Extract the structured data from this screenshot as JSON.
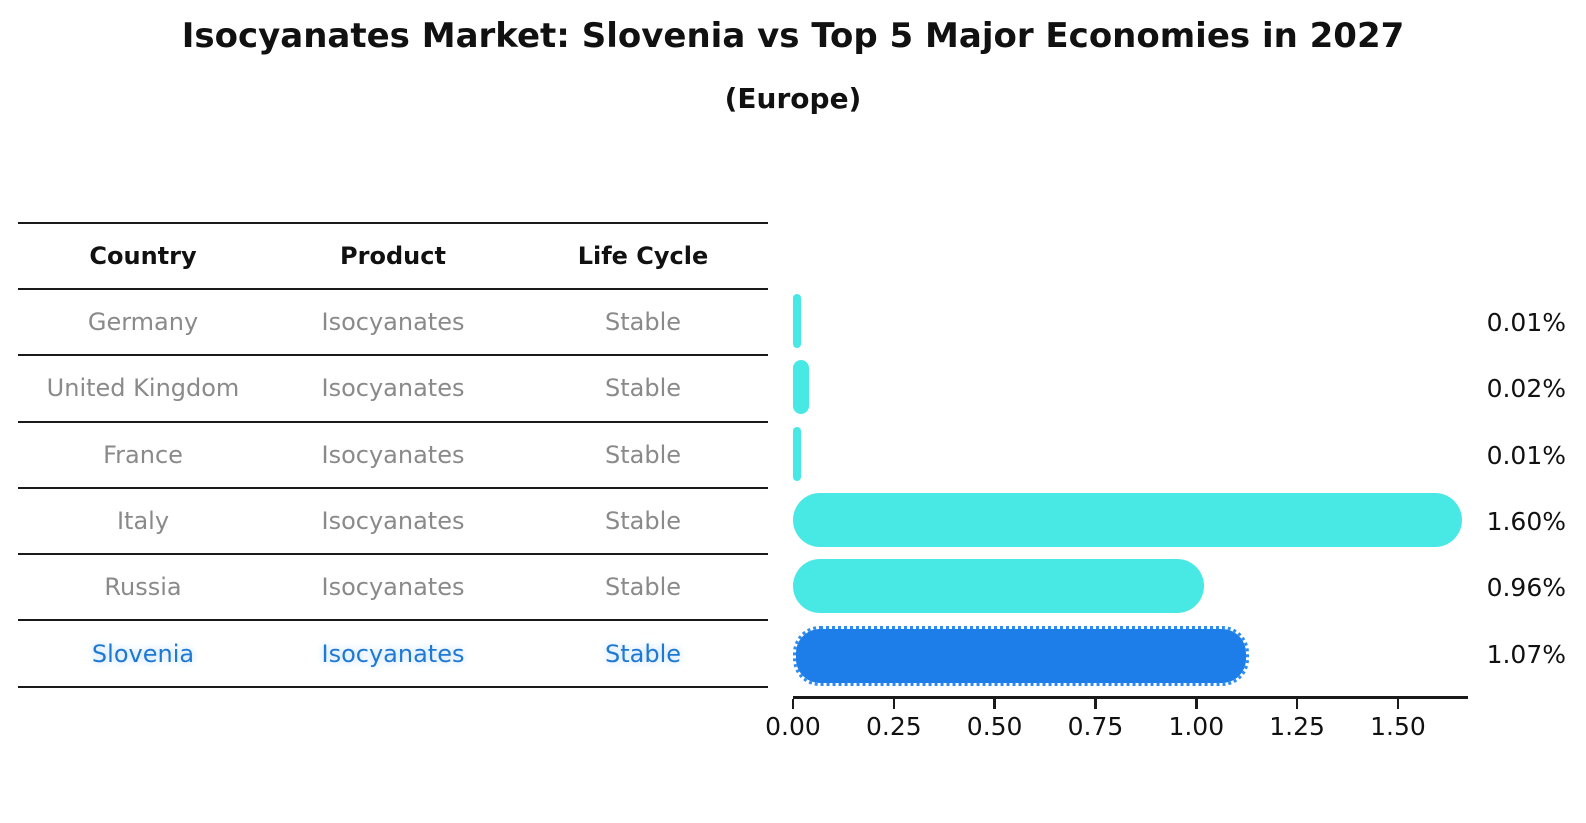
{
  "title": "Isocyanates Market: Slovenia vs Top 5 Major Economies in 2027",
  "subtitle": "(Europe)",
  "colors": {
    "bar_default": "#48E9E5",
    "bar_highlight": "#1D7EE9",
    "highlight_text": "#1E79D2",
    "table_text_gray": "#8A8A8A",
    "line_black": "#1A1A1A"
  },
  "table": {
    "headers": [
      "Country",
      "Product",
      "Life Cycle"
    ],
    "rows": [
      {
        "country": "Germany",
        "product": "Isocyanates",
        "life_cycle": "Stable",
        "highlight": false
      },
      {
        "country": "United Kingdom",
        "product": "Isocyanates",
        "life_cycle": "Stable",
        "highlight": false
      },
      {
        "country": "France",
        "product": "Isocyanates",
        "life_cycle": "Stable",
        "highlight": false
      },
      {
        "country": "Italy",
        "product": "Isocyanates",
        "life_cycle": "Stable",
        "highlight": false
      },
      {
        "country": "Russia",
        "product": "Isocyanates",
        "life_cycle": "Stable",
        "highlight": false
      },
      {
        "country": "Slovenia",
        "product": "Isocyanates",
        "life_cycle": "Stable",
        "highlight": true
      }
    ]
  },
  "chart_data": {
    "type": "bar",
    "orientation": "horizontal",
    "title": "Isocyanates Market: Slovenia vs Top 5 Major Economies in 2027",
    "subtitle": "(Europe)",
    "categories": [
      "Germany",
      "United Kingdom",
      "France",
      "Italy",
      "Russia",
      "Slovenia"
    ],
    "values": [
      0.01,
      0.02,
      0.01,
      1.6,
      0.96,
      1.07
    ],
    "value_labels": [
      "0.01%",
      "0.02%",
      "0.01%",
      "1.60%",
      "0.96%",
      "1.07%"
    ],
    "highlight_index": 5,
    "x_ticks": [
      "0.00",
      "0.25",
      "0.50",
      "0.75",
      "1.00",
      "1.25",
      "1.50"
    ],
    "x_tick_values": [
      0.0,
      0.25,
      0.5,
      0.75,
      1.0,
      1.25,
      1.5
    ],
    "xlim": [
      0,
      1.674
    ],
    "grid": false,
    "legend": "none",
    "units": "percent"
  }
}
